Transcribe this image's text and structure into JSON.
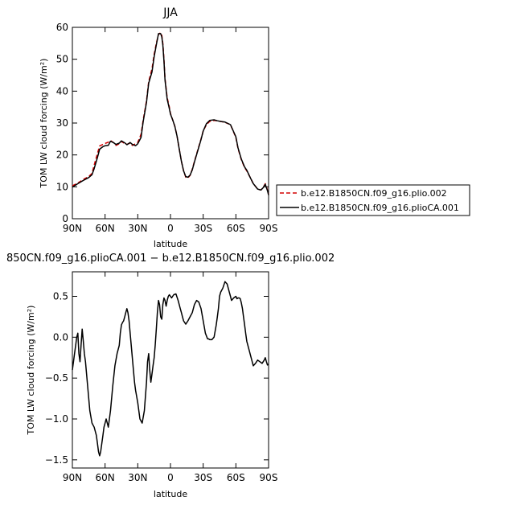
{
  "chart_data": [
    {
      "type": "line",
      "title": "JJA",
      "xlabel": "latitude",
      "ylabel": "TOM LW cloud forcing (W/m²)",
      "xlim": [
        90,
        -90
      ],
      "ylim": [
        0,
        60
      ],
      "x_ticks": [
        {
          "value": 90,
          "label": "90N"
        },
        {
          "value": 60,
          "label": "60N"
        },
        {
          "value": 30,
          "label": "30N"
        },
        {
          "value": 0,
          "label": "0"
        },
        {
          "value": -30,
          "label": "30S"
        },
        {
          "value": -60,
          "label": "60S"
        },
        {
          "value": -90,
          "label": "90S"
        }
      ],
      "y_ticks": [
        0,
        10,
        20,
        30,
        40,
        50,
        60
      ],
      "legend_position": "right",
      "series": [
        {
          "name": "b.e12.B1850CN.f09_g16.plio.002",
          "color": "#d40000",
          "dash": "dashed",
          "x": [
            90,
            85,
            80,
            75,
            72,
            70,
            67,
            65,
            62,
            60,
            57,
            55,
            52,
            50,
            47,
            45,
            42,
            40,
            37,
            35,
            32,
            30,
            27,
            25,
            22,
            20,
            17,
            15,
            13,
            11,
            9,
            8,
            7,
            6,
            5,
            3,
            1,
            0,
            -2,
            -4,
            -6,
            -8,
            -10,
            -12,
            -14,
            -16,
            -18,
            -20,
            -22,
            -25,
            -28,
            -30,
            -33,
            -36,
            -40,
            -43,
            -46,
            -50,
            -55,
            -60,
            -62,
            -65,
            -68,
            -70,
            -73,
            -76,
            -80,
            -83,
            -85,
            -87,
            -89,
            -90
          ],
          "y": [
            10.3,
            11.2,
            12.3,
            13.2,
            14.2,
            16.8,
            20.5,
            22.8,
            23.3,
            23.6,
            24.0,
            24.5,
            23.8,
            23.0,
            23.5,
            24.2,
            23.6,
            23.3,
            23.7,
            23.0,
            23.5,
            23.9,
            26.5,
            31.0,
            37.0,
            43.0,
            47.0,
            51.5,
            55.0,
            57.8,
            58.3,
            57.5,
            55.0,
            50.0,
            44.0,
            38.0,
            35.0,
            33.0,
            31.0,
            29.0,
            26.0,
            22.0,
            18.0,
            15.0,
            13.0,
            12.8,
            13.6,
            15.5,
            18.0,
            21.5,
            25.0,
            27.5,
            29.5,
            30.5,
            30.8,
            30.7,
            30.5,
            30.2,
            29.5,
            25.5,
            22.0,
            18.5,
            16.0,
            15.0,
            13.0,
            11.0,
            9.3,
            9.0,
            9.8,
            11.0,
            9.0,
            7.7
          ]
        },
        {
          "name": "b.e12.B1850CN.f09_g16.plioCA.001",
          "color": "#000000",
          "dash": "solid",
          "x": [
            90,
            85,
            80,
            75,
            72,
            70,
            67,
            65,
            62,
            60,
            57,
            55,
            52,
            50,
            47,
            45,
            42,
            40,
            37,
            35,
            32,
            30,
            27,
            25,
            22,
            20,
            17,
            15,
            13,
            11,
            9,
            8,
            7,
            6,
            5,
            3,
            1,
            0,
            -2,
            -4,
            -6,
            -8,
            -10,
            -12,
            -14,
            -16,
            -18,
            -20,
            -22,
            -25,
            -28,
            -30,
            -33,
            -36,
            -40,
            -43,
            -46,
            -50,
            -55,
            -60,
            -62,
            -65,
            -68,
            -70,
            -73,
            -76,
            -80,
            -83,
            -85,
            -87,
            -89,
            -90
          ],
          "y": [
            9.9,
            11.0,
            12.0,
            12.9,
            13.8,
            15.7,
            19.2,
            21.8,
            22.6,
            22.9,
            23.0,
            24.3,
            23.8,
            23.3,
            23.7,
            24.4,
            23.8,
            23.2,
            23.9,
            23.3,
            22.9,
            23.5,
            25.5,
            30.5,
            36.5,
            42.5,
            46.0,
            50.8,
            54.5,
            58.0,
            58.0,
            57.0,
            54.5,
            49.5,
            43.5,
            37.5,
            34.5,
            32.8,
            31.0,
            29.0,
            26.0,
            22.0,
            18.0,
            15.0,
            13.2,
            13.0,
            13.7,
            15.3,
            17.8,
            21.3,
            24.8,
            27.5,
            29.8,
            30.8,
            31.0,
            30.7,
            30.5,
            30.3,
            29.5,
            25.7,
            22.2,
            18.7,
            16.2,
            15.2,
            13.0,
            11.0,
            9.3,
            9.0,
            9.7,
            10.8,
            8.8,
            7.4
          ]
        }
      ]
    },
    {
      "type": "line",
      "title": "850CN.f09_g16.plioCA.001 − b.e12.B1850CN.f09_g16.plio.002",
      "xlabel": "latitude",
      "ylabel": "TOM LW cloud forcing (W/m²)",
      "xlim": [
        90,
        -90
      ],
      "ylim": [
        -1.6,
        0.8
      ],
      "x_ticks": [
        {
          "value": 90,
          "label": "90N"
        },
        {
          "value": 60,
          "label": "60N"
        },
        {
          "value": 30,
          "label": "30N"
        },
        {
          "value": 0,
          "label": "0"
        },
        {
          "value": -30,
          "label": "30S"
        },
        {
          "value": -60,
          "label": "60S"
        },
        {
          "value": -90,
          "label": "90S"
        }
      ],
      "y_ticks": [
        {
          "value": -1.5,
          "label": "−1.5"
        },
        {
          "value": -1.0,
          "label": "−1.0"
        },
        {
          "value": -0.5,
          "label": "−0.5"
        },
        {
          "value": 0.0,
          "label": "0.0"
        },
        {
          "value": 0.5,
          "label": "0.5"
        }
      ],
      "series": [
        {
          "color": "#000000",
          "dash": "solid",
          "x": [
            90,
            89,
            88,
            87,
            86,
            85,
            84,
            83,
            82,
            81,
            80,
            79,
            78,
            76,
            74,
            72,
            70,
            68,
            67,
            66,
            65,
            64,
            63,
            62,
            61,
            60,
            59,
            58,
            57,
            55,
            53,
            51,
            49,
            47,
            46,
            45,
            44,
            43,
            42,
            41,
            40,
            39,
            38,
            36,
            34,
            33,
            32,
            30,
            28,
            26,
            24,
            22,
            21,
            20,
            19,
            18,
            17,
            16,
            15,
            14,
            13,
            12,
            11,
            10,
            9,
            8,
            7,
            6,
            5,
            4,
            3,
            2,
            1,
            0,
            -1,
            -2,
            -3,
            -5,
            -7,
            -9,
            -10,
            -11,
            -12,
            -13,
            -14,
            -16,
            -18,
            -20,
            -22,
            -24,
            -26,
            -28,
            -30,
            -32,
            -34,
            -35,
            -36,
            -38,
            -40,
            -42,
            -43,
            -44,
            -45,
            -46,
            -48,
            -50,
            -52,
            -54,
            -55,
            -56,
            -58,
            -60,
            -61,
            -62,
            -63,
            -64,
            -65,
            -66,
            -67,
            -68,
            -69,
            -70,
            -72,
            -74,
            -76,
            -78,
            -80,
            -82,
            -84,
            -86,
            -87,
            -88,
            -89,
            -90
          ],
          "y": [
            -0.4,
            -0.3,
            -0.2,
            -0.1,
            0.0,
            0.05,
            -0.2,
            -0.3,
            -0.1,
            0.1,
            -0.05,
            -0.2,
            -0.3,
            -0.6,
            -0.9,
            -1.05,
            -1.1,
            -1.2,
            -1.3,
            -1.4,
            -1.45,
            -1.4,
            -1.3,
            -1.2,
            -1.1,
            -1.05,
            -1.0,
            -1.05,
            -1.1,
            -0.9,
            -0.6,
            -0.35,
            -0.2,
            -0.1,
            0.05,
            0.15,
            0.18,
            0.2,
            0.25,
            0.3,
            0.35,
            0.3,
            0.2,
            -0.1,
            -0.4,
            -0.55,
            -0.65,
            -0.8,
            -1.0,
            -1.05,
            -0.9,
            -0.55,
            -0.3,
            -0.2,
            -0.4,
            -0.55,
            -0.45,
            -0.35,
            -0.25,
            -0.1,
            0.1,
            0.3,
            0.45,
            0.4,
            0.25,
            0.22,
            0.4,
            0.48,
            0.45,
            0.38,
            0.45,
            0.5,
            0.52,
            0.5,
            0.48,
            0.5,
            0.52,
            0.53,
            0.45,
            0.35,
            0.3,
            0.25,
            0.2,
            0.18,
            0.16,
            0.2,
            0.25,
            0.3,
            0.4,
            0.45,
            0.43,
            0.35,
            0.2,
            0.05,
            -0.02,
            -0.02,
            -0.03,
            -0.03,
            0.0,
            0.15,
            0.25,
            0.35,
            0.5,
            0.55,
            0.6,
            0.68,
            0.65,
            0.55,
            0.5,
            0.45,
            0.48,
            0.5,
            0.47,
            0.48,
            0.48,
            0.47,
            0.42,
            0.35,
            0.25,
            0.15,
            0.05,
            -0.05,
            -0.15,
            -0.25,
            -0.35,
            -0.32,
            -0.28,
            -0.3,
            -0.32,
            -0.28,
            -0.25,
            -0.3,
            -0.34,
            -0.33
          ]
        }
      ]
    }
  ]
}
